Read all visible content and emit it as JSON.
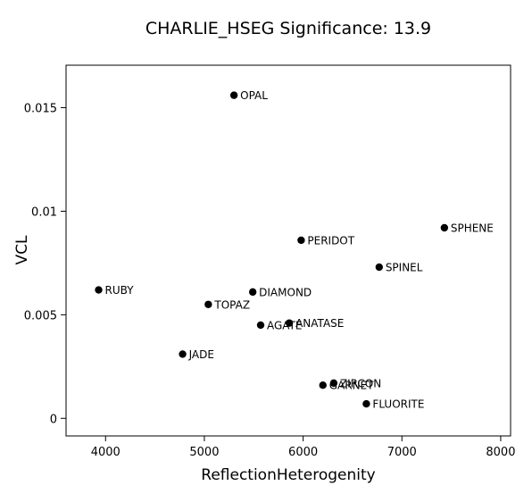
{
  "chart_data": {
    "type": "scatter",
    "title": "CHARLIE_HSEG  Significance:  13.9",
    "xlabel": "ReflectionHeterogenity",
    "ylabel": "VCL",
    "xlim": [
      3600,
      8100
    ],
    "ylim": [
      -0.00085,
      0.01705
    ],
    "x_ticks": [
      4000,
      5000,
      6000,
      7000,
      8000
    ],
    "x_tick_labels": [
      "4000",
      "5000",
      "6000",
      "7000",
      "8000"
    ],
    "y_ticks": [
      0,
      0.005,
      0.01,
      0.015
    ],
    "y_tick_labels": [
      "0",
      "0.005",
      "0.01",
      "0.015"
    ],
    "grid": false,
    "legend": "none",
    "points": [
      {
        "label": "OPAL",
        "x": 5300,
        "y": 0.0156
      },
      {
        "label": "SPHENE",
        "x": 7430,
        "y": 0.0092
      },
      {
        "label": "PERIDOT",
        "x": 5980,
        "y": 0.0086
      },
      {
        "label": "SPINEL",
        "x": 6770,
        "y": 0.0073
      },
      {
        "label": "RUBY",
        "x": 3930,
        "y": 0.0062
      },
      {
        "label": "DIAMOND",
        "x": 5490,
        "y": 0.0061
      },
      {
        "label": "TOPAZ",
        "x": 5040,
        "y": 0.0055
      },
      {
        "label": "ANATASE",
        "x": 5860,
        "y": 0.0046
      },
      {
        "label": "AGATE",
        "x": 5570,
        "y": 0.0045
      },
      {
        "label": "JADE",
        "x": 4780,
        "y": 0.0031
      },
      {
        "label": "ZIRCON",
        "x": 6310,
        "y": 0.0017
      },
      {
        "label": "GARNET",
        "x": 6200,
        "y": 0.0016
      },
      {
        "label": "FLUORITE",
        "x": 6640,
        "y": 0.0007
      }
    ]
  }
}
